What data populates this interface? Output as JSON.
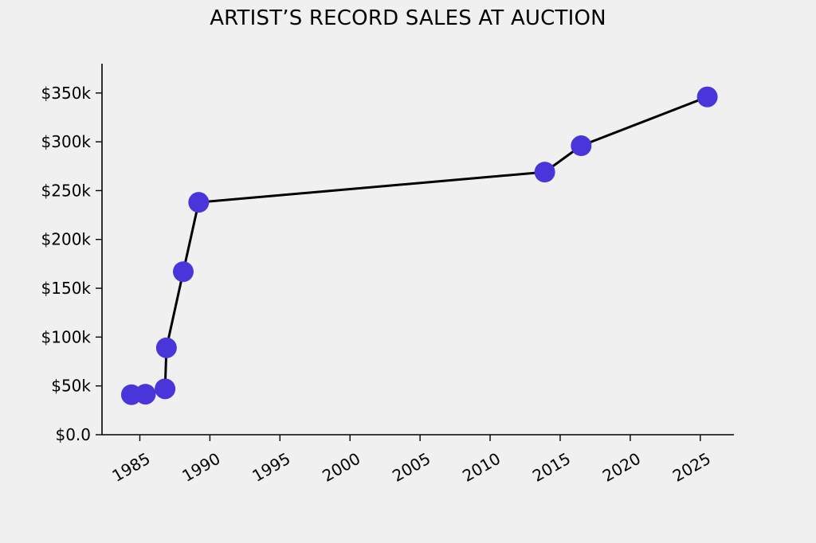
{
  "chart_data": {
    "type": "line",
    "title": "ARTIST’S RECORD SALES AT AUCTION",
    "xlabel": "",
    "ylabel": "",
    "x_ticks": [
      1985,
      1990,
      1995,
      2000,
      2005,
      2010,
      2015,
      2020,
      2025
    ],
    "x_tick_labels": [
      "1985",
      "1990",
      "1995",
      "2000",
      "2005",
      "2010",
      "2015",
      "2020",
      "2025"
    ],
    "y_ticks": [
      0,
      50000,
      100000,
      150000,
      200000,
      250000,
      300000,
      350000
    ],
    "y_tick_labels": [
      "$0.0",
      "$50k",
      "$100k",
      "$150k",
      "$200k",
      "$250k",
      "$300k",
      "$350k"
    ],
    "xlim": [
      1982.3,
      2027.4
    ],
    "ylim": [
      0,
      380000
    ],
    "grid": false,
    "series": [
      {
        "x": [
          1984.4,
          1985.4,
          1986.8,
          1986.9,
          1988.1,
          1989.2,
          2013.9,
          2016.5,
          2025.5
        ],
        "y": [
          41000,
          41500,
          47000,
          89000,
          167000,
          238000,
          269000,
          296000,
          346000
        ],
        "line_color": "#000000",
        "marker_color": "#4a35db"
      }
    ]
  }
}
